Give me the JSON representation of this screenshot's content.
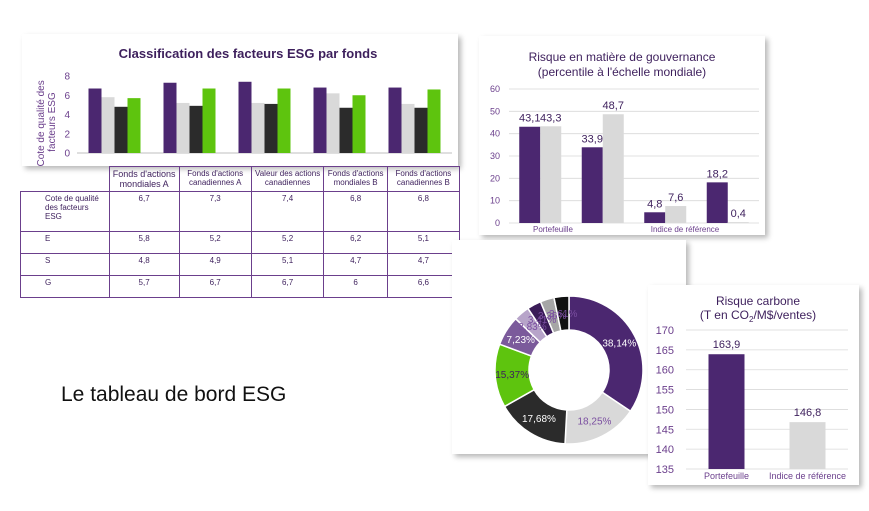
{
  "caption": "Le tableau de bord ESG",
  "colors": {
    "purple": "#4b2770",
    "lightgray": "#d9d9d9",
    "darkgray": "#2b2b2b",
    "green": "#5ec40e",
    "title": "#3d1f5c"
  },
  "chart_data": [
    {
      "type": "bar",
      "title": "Classification des facteurs ESG par fonds",
      "ylabel": "Cote de qualité des facteurs ESG",
      "ylim": [
        0,
        8
      ],
      "yticks": [
        "0",
        "2",
        "4",
        "6",
        "8"
      ],
      "categories": [
        "Fonds d'actions mondiales A",
        "Fonds d'actions canadiennes A",
        "Valeur des actions canadiennes",
        "Fonds d'actions mondiales B",
        "Fonds d'actions canadiennes B"
      ],
      "series": [
        {
          "name": "Cote de qualité des facteurs ESG",
          "color": "#4b2770",
          "values": [
            6.7,
            7.3,
            7.4,
            6.8,
            6.8
          ]
        },
        {
          "name": "E",
          "color": "#d9d9d9",
          "values": [
            5.8,
            5.2,
            5.2,
            6.2,
            5.1
          ]
        },
        {
          "name": "S",
          "color": "#2b2b2b",
          "values": [
            4.8,
            4.9,
            5.1,
            4.7,
            4.7
          ]
        },
        {
          "name": "G",
          "color": "#5ec40e",
          "values": [
            5.7,
            6.7,
            6.7,
            6,
            6.6
          ]
        }
      ]
    },
    {
      "type": "bar",
      "title": "Risque en matière de gouvernance",
      "subtitle": "(percentile à l'échelle mondiale)",
      "ylim": [
        0,
        60
      ],
      "yticks": [
        "0",
        "10",
        "20",
        "30",
        "40",
        "50",
        "60"
      ],
      "group_labels": [
        "Portefeuille",
        "Indice de référence"
      ],
      "series": [
        {
          "color": "#4b2770",
          "values": [
            43.1,
            33.9,
            4.8,
            18.2
          ],
          "labels": [
            "43,1",
            "33,9",
            "4,8",
            "18,2"
          ]
        },
        {
          "color": "#d9d9d9",
          "values": [
            43.3,
            48.7,
            7.6,
            0.4
          ],
          "labels": [
            "43,3",
            "48,7",
            "7,6",
            "0,4"
          ]
        }
      ]
    },
    {
      "type": "pie",
      "slices": [
        {
          "value": 38.14,
          "label": "38,14%",
          "color": "#4b2770",
          "label_color": "#ffffff"
        },
        {
          "value": 18.25,
          "label": "18,25%",
          "color": "#d9d9d9",
          "label_color": "#7b4fa0"
        },
        {
          "value": 17.68,
          "label": "17,68%",
          "color": "#2b2b2b",
          "label_color": "#ffffff"
        },
        {
          "value": 15.37,
          "label": "15,37%",
          "color": "#5ec40e",
          "label_color": "#3d1f5c"
        },
        {
          "value": 7.23,
          "label": "7,23%",
          "color": "#7b5a9b",
          "label_color": "#ffffff"
        },
        {
          "value": 3.83,
          "label": "3,83%",
          "color": "#b7a4c9",
          "label_color": "#7b4fa0"
        },
        {
          "value": 3.41,
          "label": "3,41%",
          "color": "#3a1c58",
          "label_color": "#7b4fa0"
        },
        {
          "value": 3.36,
          "label": "3,36%",
          "color": "#a6a6a6",
          "label_color": "#7b4fa0"
        },
        {
          "value": 3.61,
          "label": "3,61%",
          "color": "#111111",
          "label_color": "#7b4fa0"
        }
      ]
    },
    {
      "type": "bar",
      "title": "Risque carbone",
      "subtitle_pre": "(T en CO",
      "subtitle_sub": "2",
      "subtitle_post": "/M$/ventes)",
      "ylim": [
        135,
        170
      ],
      "yticks": [
        "135",
        "140",
        "145",
        "150",
        "155",
        "160",
        "165",
        "170"
      ],
      "categories": [
        "Portefeuille",
        "Indice de référence"
      ],
      "values": [
        163.9,
        146.8
      ],
      "labels": [
        "163,9",
        "146,8"
      ],
      "colors": [
        "#4b2770",
        "#d9d9d9"
      ]
    }
  ],
  "table": {
    "headers": [
      "Fonds d'actions mondiales A",
      "Fonds d'actions canadiennes A",
      "Valeur des actions canadiennes",
      "Fonds d'actions mondiales B",
      "Fonds d'actions canadiennes B"
    ],
    "rows": [
      {
        "label": "Cote de qualité des facteurs ESG",
        "cells": [
          "6,7",
          "7,3",
          "7,4",
          "6,8",
          "6,8"
        ]
      },
      {
        "label": "E",
        "cells": [
          "5,8",
          "5,2",
          "5,2",
          "6,2",
          "5,1"
        ]
      },
      {
        "label": "S",
        "cells": [
          "4,8",
          "4,9",
          "5,1",
          "4,7",
          "4,7"
        ]
      },
      {
        "label": "G",
        "cells": [
          "5,7",
          "6,7",
          "6,7",
          "6",
          "6,6"
        ]
      }
    ]
  }
}
